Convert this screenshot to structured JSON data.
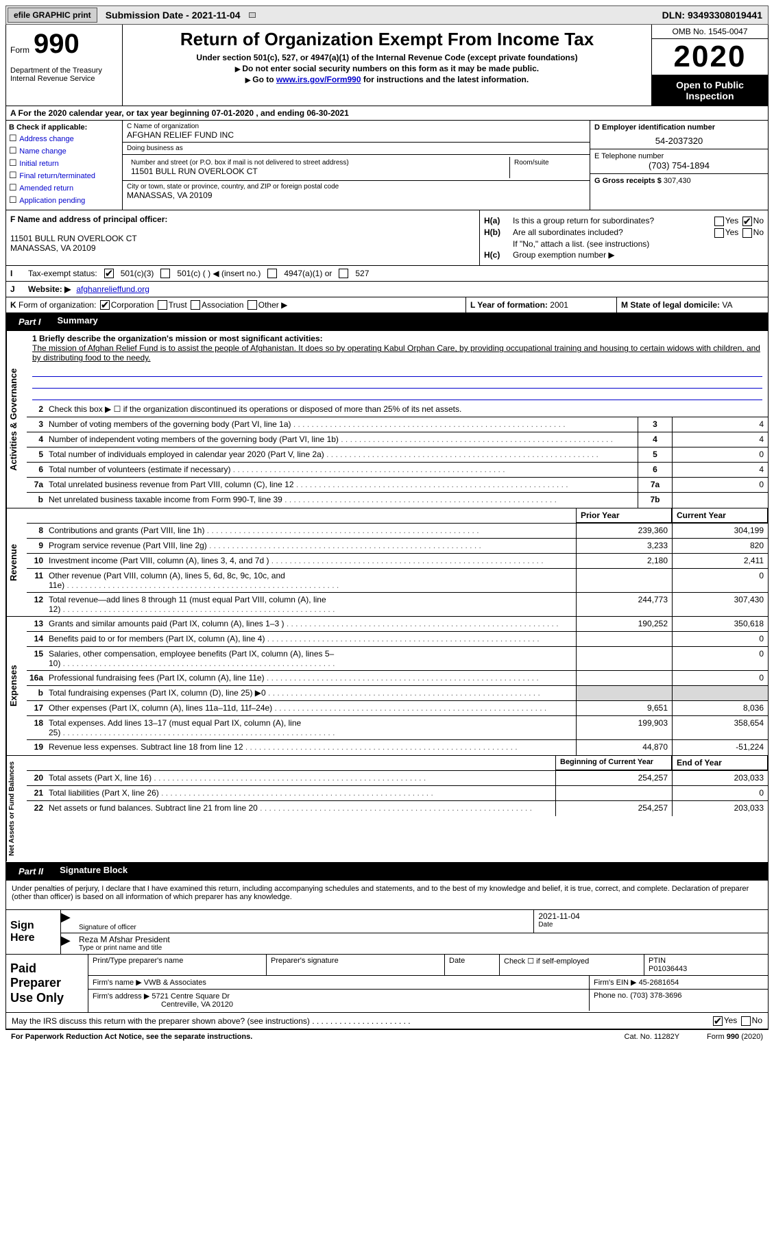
{
  "colors": {
    "link": "#0000cc",
    "shade": "#d9d9d9",
    "topbar_bg": "#e8e8e8",
    "black": "#000000",
    "white": "#ffffff"
  },
  "topbar": {
    "efile": "efile GRAPHIC print",
    "subdate_label": "Submission Date - 2021-11-04",
    "dln": "DLN: 93493308019441"
  },
  "header": {
    "form_word": "Form",
    "form_num": "990",
    "dept": "Department of the Treasury\nInternal Revenue Service",
    "title": "Return of Organization Exempt From Income Tax",
    "sub1": "Under section 501(c), 527, or 4947(a)(1) of the Internal Revenue Code (except private foundations)",
    "sub2": "Do not enter social security numbers on this form as it may be made public.",
    "sub3_a": "Go to ",
    "sub3_link": "www.irs.gov/Form990",
    "sub3_b": " for instructions and the latest information.",
    "omb": "OMB No. 1545-0047",
    "year": "2020",
    "open": "Open to Public Inspection"
  },
  "lineA": "A For the 2020 calendar year, or tax year beginning 07-01-2020     , and ending 06-30-2021",
  "boxB": {
    "label": "B Check if applicable:",
    "items": [
      "Address change",
      "Name change",
      "Initial return",
      "Final return/terminated",
      "Amended return",
      "Application pending"
    ]
  },
  "boxC": {
    "name_lbl": "C Name of organization",
    "name": "AFGHAN RELIEF FUND INC",
    "dba_lbl": "Doing business as",
    "dba": "",
    "addr_lbl": "Number and street (or P.O. box if mail is not delivered to street address)",
    "addr": "11501 BULL RUN OVERLOOK CT",
    "room_lbl": "Room/suite",
    "city_lbl": "City or town, state or province, country, and ZIP or foreign postal code",
    "city": "MANASSAS, VA  20109"
  },
  "boxD": {
    "lbl": "D Employer identification number",
    "val": "54-2037320"
  },
  "boxE": {
    "lbl": "E Telephone number",
    "val": "(703) 754-1894"
  },
  "boxG": {
    "lbl": "G Gross receipts $",
    "val": "307,430"
  },
  "boxF": {
    "lbl": "F Name and address of principal officer:",
    "addr1": "11501 BULL RUN OVERLOOK CT",
    "addr2": "MANASSAS, VA  20109"
  },
  "boxH": {
    "a_lbl": "Is this a group return for subordinates?",
    "a_yes": false,
    "a_no": true,
    "b_lbl": "Are all subordinates included?",
    "b_yes": false,
    "b_no": false,
    "note": "If \"No,\" attach a list. (see instructions)",
    "c_lbl": "Group exemption number ▶",
    "c_val": ""
  },
  "lineI": {
    "tag": "I",
    "lbl": "Tax-exempt status:",
    "c3_checked": true,
    "opts": [
      "501(c)(3)",
      "501(c) (  ) ◀ (insert no.)",
      "4947(a)(1) or",
      "527"
    ]
  },
  "lineJ": {
    "tag": "J",
    "lbl": "Website: ▶",
    "val": "afghanrelieffund.org"
  },
  "lineK": {
    "tag": "K",
    "lbl": "Form of organization:",
    "corp_checked": true,
    "opts": [
      "Corporation",
      "Trust",
      "Association",
      "Other ▶"
    ]
  },
  "lineL": {
    "lbl": "L Year of formation:",
    "val": "2001"
  },
  "lineM": {
    "lbl": "M State of legal domicile:",
    "val": "VA"
  },
  "part1": {
    "label": "Part I",
    "title": "Summary"
  },
  "mission": {
    "q": "1  Briefly describe the organization's mission or most significant activities:",
    "txt": "The mission of Afghan Relief Fund is to assist the people of Afghanistan. It does so by operating Kabul Orphan Care, by providing occupational training and housing to certain widows with children, and by distributing food to the needy."
  },
  "line2": "Check this box ▶ ☐  if the organization discontinued its operations or disposed of more than 25% of its net assets.",
  "tabs": {
    "gov": "Activities & Governance",
    "rev": "Revenue",
    "exp": "Expenses",
    "net": "Net Assets or Fund Balances"
  },
  "gov_rows": [
    {
      "n": "3",
      "t": "Number of voting members of the governing body (Part VI, line 1a)",
      "b": "3",
      "v": "4"
    },
    {
      "n": "4",
      "t": "Number of independent voting members of the governing body (Part VI, line 1b)",
      "b": "4",
      "v": "4"
    },
    {
      "n": "5",
      "t": "Total number of individuals employed in calendar year 2020 (Part V, line 2a)",
      "b": "5",
      "v": "0"
    },
    {
      "n": "6",
      "t": "Total number of volunteers (estimate if necessary)",
      "b": "6",
      "v": "4"
    },
    {
      "n": "7a",
      "t": "Total unrelated business revenue from Part VIII, column (C), line 12",
      "b": "7a",
      "v": "0"
    },
    {
      "n": "b",
      "t": "Net unrelated business taxable income from Form 990-T, line 39",
      "b": "7b",
      "v": ""
    }
  ],
  "col_hdr": {
    "py": "Prior Year",
    "cy": "Current Year"
  },
  "rev_rows": [
    {
      "n": "8",
      "t": "Contributions and grants (Part VIII, line 1h)",
      "py": "239,360",
      "cy": "304,199"
    },
    {
      "n": "9",
      "t": "Program service revenue (Part VIII, line 2g)",
      "py": "3,233",
      "cy": "820"
    },
    {
      "n": "10",
      "t": "Investment income (Part VIII, column (A), lines 3, 4, and 7d )",
      "py": "2,180",
      "cy": "2,411"
    },
    {
      "n": "11",
      "t": "Other revenue (Part VIII, column (A), lines 5, 6d, 8c, 9c, 10c, and 11e)",
      "py": "",
      "cy": "0"
    },
    {
      "n": "12",
      "t": "Total revenue—add lines 8 through 11 (must equal Part VIII, column (A), line 12)",
      "py": "244,773",
      "cy": "307,430"
    }
  ],
  "exp_rows": [
    {
      "n": "13",
      "t": "Grants and similar amounts paid (Part IX, column (A), lines 1–3 )",
      "py": "190,252",
      "cy": "350,618"
    },
    {
      "n": "14",
      "t": "Benefits paid to or for members (Part IX, column (A), line 4)",
      "py": "",
      "cy": "0"
    },
    {
      "n": "15",
      "t": "Salaries, other compensation, employee benefits (Part IX, column (A), lines 5–10)",
      "py": "",
      "cy": "0"
    },
    {
      "n": "16a",
      "t": "Professional fundraising fees (Part IX, column (A), line 11e)",
      "py": "",
      "cy": "0"
    },
    {
      "n": "b",
      "t": "Total fundraising expenses (Part IX, column (D), line 25) ▶0",
      "py": "shade",
      "cy": "shade"
    },
    {
      "n": "17",
      "t": "Other expenses (Part IX, column (A), lines 11a–11d, 11f–24e)",
      "py": "9,651",
      "cy": "8,036"
    },
    {
      "n": "18",
      "t": "Total expenses. Add lines 13–17 (must equal Part IX, column (A), line 25)",
      "py": "199,903",
      "cy": "358,654"
    },
    {
      "n": "19",
      "t": "Revenue less expenses. Subtract line 18 from line 12",
      "py": "44,870",
      "cy": "-51,224"
    }
  ],
  "net_hdr": {
    "py": "Beginning of Current Year",
    "cy": "End of Year"
  },
  "net_rows": [
    {
      "n": "20",
      "t": "Total assets (Part X, line 16)",
      "py": "254,257",
      "cy": "203,033"
    },
    {
      "n": "21",
      "t": "Total liabilities (Part X, line 26)",
      "py": "",
      "cy": "0"
    },
    {
      "n": "22",
      "t": "Net assets or fund balances. Subtract line 21 from line 20",
      "py": "254,257",
      "cy": "203,033"
    }
  ],
  "part2": {
    "label": "Part II",
    "title": "Signature Block"
  },
  "penalty": "Under penalties of perjury, I declare that I have examined this return, including accompanying schedules and statements, and to the best of my knowledge and belief, it is true, correct, and complete. Declaration of preparer (other than officer) is based on all information of which preparer has any knowledge.",
  "sign": {
    "side": "Sign Here",
    "sig_lbl": "Signature of officer",
    "date_lbl": "Date",
    "date": "2021-11-04",
    "name": "Reza M Afshar  President",
    "name_lbl": "Type or print name and title"
  },
  "prep": {
    "side": "Paid Preparer Use Only",
    "h": [
      "Print/Type preparer's name",
      "Preparer's signature",
      "Date"
    ],
    "check_lbl": "Check ☐ if self-employed",
    "ptin_lbl": "PTIN",
    "ptin": "P01036443",
    "firm_lbl": "Firm's name  ▶",
    "firm": "VWB & Associates",
    "ein_lbl": "Firm's EIN ▶",
    "ein": "45-2681654",
    "addr_lbl": "Firm's address ▶",
    "addr": "5721 Centre Square Dr",
    "city": "Centreville, VA  20120",
    "phone_lbl": "Phone no.",
    "phone": "(703) 378-3696"
  },
  "discuss": {
    "q": "May the IRS discuss this return with the preparer shown above? (see instructions)",
    "yes": true,
    "no": false
  },
  "footer": {
    "a": "For Paperwork Reduction Act Notice, see the separate instructions.",
    "b": "Cat. No. 11282Y",
    "c": "Form 990 (2020)"
  }
}
